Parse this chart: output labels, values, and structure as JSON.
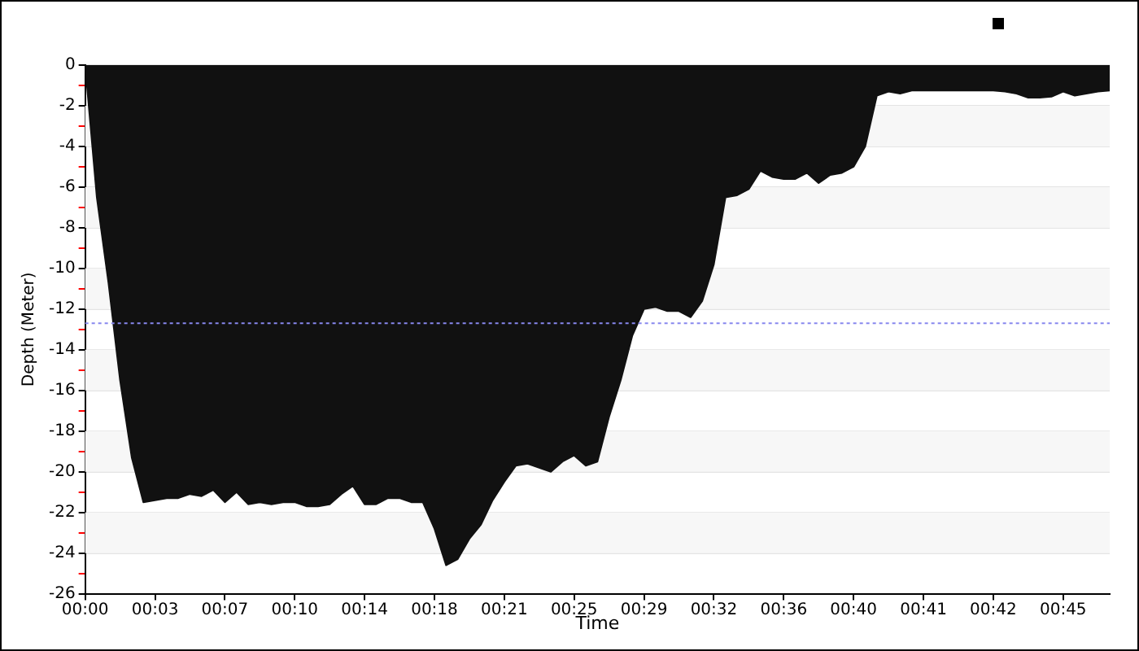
{
  "chart_data": {
    "type": "area",
    "xlabel": "Time",
    "ylabel": "Depth (Meter)",
    "categories": [
      "00:00",
      null,
      null,
      null,
      null,
      null,
      "00:03",
      null,
      null,
      null,
      null,
      null,
      "00:07",
      null,
      null,
      null,
      null,
      null,
      "00:10",
      null,
      null,
      null,
      null,
      null,
      "00:14",
      null,
      null,
      null,
      null,
      null,
      "00:18",
      null,
      null,
      null,
      null,
      null,
      "00:21",
      null,
      null,
      null,
      null,
      null,
      "00:25",
      null,
      null,
      null,
      null,
      null,
      "00:29",
      null,
      null,
      null,
      null,
      null,
      "00:32",
      null,
      null,
      null,
      null,
      null,
      "00:36",
      null,
      null,
      null,
      null,
      null,
      "00:40",
      null,
      null,
      null,
      null,
      null,
      "00:41",
      null,
      null,
      null,
      null,
      null,
      "00:42",
      null,
      null,
      null,
      null,
      null,
      "00:45",
      null,
      null,
      null,
      null
    ],
    "series": [
      {
        "color": "#111111",
        "values": [
          0,
          -6.5,
          -10.7,
          -15.5,
          -19.3,
          -21.5,
          -21.4,
          -21.3,
          -21.3,
          -21.1,
          -21.2,
          -20.9,
          -21.5,
          -21.0,
          -21.6,
          -21.5,
          -21.6,
          -21.5,
          -21.5,
          -21.7,
          -21.7,
          -21.6,
          -21.1,
          -20.7,
          -21.6,
          -21.6,
          -21.3,
          -21.3,
          -21.5,
          -21.5,
          -22.8,
          -24.6,
          -24.3,
          -23.3,
          -22.6,
          -21.4,
          -20.5,
          -19.7,
          -19.6,
          -19.8,
          -20.0,
          -19.5,
          -19.2,
          -19.7,
          -19.5,
          -17.3,
          -15.5,
          -13.3,
          -12.0,
          -11.9,
          -12.1,
          -12.1,
          -12.4,
          -11.6,
          -9.8,
          -6.5,
          -6.4,
          -6.1,
          -5.2,
          -5.5,
          -5.6,
          -5.6,
          -5.3,
          -5.8,
          -5.4,
          -5.3,
          -5.0,
          -4.0,
          -1.5,
          -1.3,
          -1.4,
          -1.25,
          -1.25,
          -1.25,
          -1.25,
          -1.25,
          -1.25,
          -1.25,
          -1.25,
          -1.3,
          -1.4,
          -1.6,
          -1.6,
          -1.55,
          -1.3,
          -1.5,
          -1.4,
          -1.3,
          -1.25
        ]
      }
    ],
    "ylim": [
      -26,
      0
    ],
    "yticks": [
      0,
      {
        "value": -1,
        "label": null
      },
      -2,
      {
        "value": -3,
        "label": null
      },
      -4,
      {
        "value": -5,
        "label": null
      },
      -6,
      {
        "value": -7,
        "label": null
      },
      -8,
      {
        "value": -9,
        "label": null
      },
      -10,
      {
        "value": -11,
        "label": null
      },
      -12,
      {
        "value": -13,
        "label": null
      },
      -14,
      {
        "value": -15,
        "label": null
      },
      -16,
      {
        "value": -17,
        "label": null
      },
      -18,
      {
        "value": -19,
        "label": null
      },
      -20,
      {
        "value": -21,
        "label": null
      },
      -22,
      {
        "value": -23,
        "label": null
      },
      -24,
      {
        "value": -25,
        "label": null
      },
      -26
    ],
    "ref_lines": [
      {
        "axis": "y",
        "value": -12.7,
        "color": "#8888ee",
        "line_style": "dotted"
      }
    ],
    "grid": "y",
    "marker": "none",
    "legend": false
  }
}
